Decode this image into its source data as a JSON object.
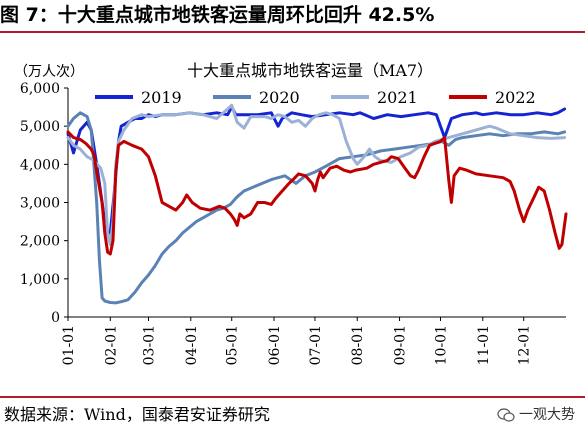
{
  "figure": {
    "title": "图 7：十大重点城市地铁客运量周环比回升 42.5%",
    "source": "数据来源：Wind，国泰君安证券研究",
    "watermark": "一观大势"
  },
  "colors": {
    "rule": "#b01c2e",
    "series": [
      "#1424d2",
      "#5a82b4",
      "#9bb2d6",
      "#c00000"
    ]
  },
  "chart_data": {
    "type": "line",
    "title": "十大重点城市地铁客运量（MA7）",
    "unit_label": "（万人次）",
    "xlabel": "",
    "ylabel": "",
    "ylim": [
      0,
      6000
    ],
    "yticks": [
      0,
      1000,
      2000,
      3000,
      4000,
      5000,
      6000
    ],
    "ytick_labels": [
      "0",
      "1,000",
      "2,000",
      "3,000",
      "4,000",
      "5,000",
      "6,000"
    ],
    "xlim": [
      1,
      366
    ],
    "xticks": [
      1,
      32,
      60,
      91,
      121,
      152,
      182,
      213,
      244,
      274,
      305,
      335
    ],
    "xtick_labels": [
      "01-01",
      "02-01",
      "03-01",
      "04-01",
      "05-01",
      "06-01",
      "07-01",
      "08-01",
      "09-01",
      "10-01",
      "11-01",
      "12-01"
    ],
    "x_unit": "day of year (date axis, MM-DD)",
    "grid": false,
    "legend_position": "top",
    "series": [
      {
        "name": "2019",
        "points": [
          [
            1,
            4800
          ],
          [
            5,
            4300
          ],
          [
            10,
            4900
          ],
          [
            15,
            5100
          ],
          [
            18,
            4900
          ],
          [
            22,
            4000
          ],
          [
            26,
            3000
          ],
          [
            29,
            2200
          ],
          [
            32,
            2200
          ],
          [
            35,
            3300
          ],
          [
            38,
            4600
          ],
          [
            40,
            5000
          ],
          [
            45,
            5100
          ],
          [
            50,
            5200
          ],
          [
            55,
            5200
          ],
          [
            60,
            5300
          ],
          [
            65,
            5250
          ],
          [
            70,
            5300
          ],
          [
            80,
            5300
          ],
          [
            90,
            5350
          ],
          [
            100,
            5300
          ],
          [
            110,
            5350
          ],
          [
            118,
            5300
          ],
          [
            121,
            5500
          ],
          [
            124,
            5300
          ],
          [
            130,
            5300
          ],
          [
            140,
            5300
          ],
          [
            150,
            5350
          ],
          [
            155,
            5000
          ],
          [
            158,
            5200
          ],
          [
            165,
            5350
          ],
          [
            172,
            5300
          ],
          [
            180,
            5250
          ],
          [
            190,
            5300
          ],
          [
            200,
            5350
          ],
          [
            210,
            5300
          ],
          [
            215,
            5350
          ],
          [
            225,
            5200
          ],
          [
            235,
            5300
          ],
          [
            245,
            5250
          ],
          [
            255,
            5300
          ],
          [
            265,
            5350
          ],
          [
            271,
            5300
          ],
          [
            274,
            5000
          ],
          [
            277,
            4700
          ],
          [
            282,
            5200
          ],
          [
            290,
            5300
          ],
          [
            300,
            5350
          ],
          [
            305,
            5300
          ],
          [
            315,
            5350
          ],
          [
            325,
            5300
          ],
          [
            335,
            5300
          ],
          [
            345,
            5350
          ],
          [
            355,
            5300
          ],
          [
            360,
            5350
          ],
          [
            365,
            5450
          ]
        ]
      },
      {
        "name": "2020",
        "points": [
          [
            1,
            5000
          ],
          [
            5,
            5200
          ],
          [
            10,
            5350
          ],
          [
            15,
            5250
          ],
          [
            18,
            4900
          ],
          [
            20,
            4000
          ],
          [
            22,
            3000
          ],
          [
            24,
            1500
          ],
          [
            26,
            500
          ],
          [
            28,
            420
          ],
          [
            32,
            380
          ],
          [
            36,
            370
          ],
          [
            40,
            400
          ],
          [
            45,
            450
          ],
          [
            50,
            650
          ],
          [
            55,
            900
          ],
          [
            60,
            1100
          ],
          [
            65,
            1350
          ],
          [
            70,
            1650
          ],
          [
            75,
            1850
          ],
          [
            80,
            2000
          ],
          [
            85,
            2200
          ],
          [
            90,
            2350
          ],
          [
            95,
            2500
          ],
          [
            100,
            2600
          ],
          [
            105,
            2700
          ],
          [
            110,
            2800
          ],
          [
            115,
            2850
          ],
          [
            120,
            2950
          ],
          [
            125,
            3150
          ],
          [
            130,
            3300
          ],
          [
            140,
            3450
          ],
          [
            150,
            3600
          ],
          [
            160,
            3700
          ],
          [
            168,
            3500
          ],
          [
            175,
            3700
          ],
          [
            182,
            3800
          ],
          [
            190,
            3950
          ],
          [
            200,
            4150
          ],
          [
            210,
            4200
          ],
          [
            220,
            4250
          ],
          [
            230,
            4350
          ],
          [
            240,
            4400
          ],
          [
            250,
            4450
          ],
          [
            260,
            4500
          ],
          [
            270,
            4550
          ],
          [
            275,
            4600
          ],
          [
            280,
            4500
          ],
          [
            285,
            4650
          ],
          [
            290,
            4700
          ],
          [
            300,
            4750
          ],
          [
            310,
            4800
          ],
          [
            320,
            4750
          ],
          [
            330,
            4800
          ],
          [
            340,
            4800
          ],
          [
            350,
            4850
          ],
          [
            360,
            4800
          ],
          [
            365,
            4850
          ]
        ]
      },
      {
        "name": "2021",
        "points": [
          [
            1,
            4700
          ],
          [
            5,
            4500
          ],
          [
            10,
            4400
          ],
          [
            15,
            4200
          ],
          [
            20,
            4100
          ],
          [
            25,
            3900
          ],
          [
            28,
            3500
          ],
          [
            30,
            2200
          ],
          [
            32,
            1900
          ],
          [
            34,
            2500
          ],
          [
            36,
            4000
          ],
          [
            38,
            4600
          ],
          [
            42,
            4900
          ],
          [
            48,
            5200
          ],
          [
            55,
            5300
          ],
          [
            60,
            5250
          ],
          [
            70,
            5300
          ],
          [
            80,
            5300
          ],
          [
            90,
            5350
          ],
          [
            100,
            5300
          ],
          [
            110,
            5200
          ],
          [
            118,
            5450
          ],
          [
            121,
            5550
          ],
          [
            125,
            5100
          ],
          [
            130,
            4950
          ],
          [
            135,
            5250
          ],
          [
            145,
            5250
          ],
          [
            150,
            5200
          ],
          [
            155,
            5300
          ],
          [
            160,
            5250
          ],
          [
            165,
            5100
          ],
          [
            170,
            5150
          ],
          [
            175,
            5000
          ],
          [
            180,
            5200
          ],
          [
            185,
            5300
          ],
          [
            190,
            5350
          ],
          [
            195,
            5300
          ],
          [
            200,
            5200
          ],
          [
            205,
            4600
          ],
          [
            210,
            4150
          ],
          [
            213,
            4000
          ],
          [
            218,
            4200
          ],
          [
            222,
            4400
          ],
          [
            226,
            4200
          ],
          [
            230,
            4100
          ],
          [
            238,
            4050
          ],
          [
            245,
            4200
          ],
          [
            252,
            4300
          ],
          [
            258,
            4450
          ],
          [
            265,
            4500
          ],
          [
            270,
            4600
          ],
          [
            275,
            4650
          ],
          [
            280,
            4700
          ],
          [
            285,
            4750
          ],
          [
            290,
            4800
          ],
          [
            295,
            4850
          ],
          [
            300,
            4900
          ],
          [
            305,
            4950
          ],
          [
            310,
            5000
          ],
          [
            315,
            4950
          ],
          [
            325,
            4800
          ],
          [
            335,
            4750
          ],
          [
            345,
            4700
          ],
          [
            355,
            4680
          ],
          [
            365,
            4700
          ]
        ]
      },
      {
        "name": "2022",
        "points": [
          [
            1,
            4850
          ],
          [
            5,
            4700
          ],
          [
            10,
            4650
          ],
          [
            14,
            4550
          ],
          [
            18,
            4400
          ],
          [
            20,
            4250
          ],
          [
            22,
            3800
          ],
          [
            26,
            3000
          ],
          [
            28,
            2200
          ],
          [
            30,
            1700
          ],
          [
            32,
            1650
          ],
          [
            34,
            2000
          ],
          [
            36,
            3800
          ],
          [
            38,
            4500
          ],
          [
            42,
            4600
          ],
          [
            48,
            4500
          ],
          [
            55,
            4400
          ],
          [
            60,
            4200
          ],
          [
            65,
            3700
          ],
          [
            70,
            3000
          ],
          [
            75,
            2900
          ],
          [
            80,
            2800
          ],
          [
            85,
            3000
          ],
          [
            88,
            3200
          ],
          [
            92,
            3000
          ],
          [
            98,
            2850
          ],
          [
            105,
            2800
          ],
          [
            112,
            2900
          ],
          [
            116,
            2850
          ],
          [
            120,
            2700
          ],
          [
            123,
            2550
          ],
          [
            125,
            2400
          ],
          [
            127,
            2700
          ],
          [
            130,
            2600
          ],
          [
            135,
            2700
          ],
          [
            140,
            3000
          ],
          [
            145,
            3000
          ],
          [
            150,
            2950
          ],
          [
            153,
            3100
          ],
          [
            158,
            3300
          ],
          [
            163,
            3500
          ],
          [
            166,
            3600
          ],
          [
            170,
            3750
          ],
          [
            175,
            3700
          ],
          [
            180,
            3500
          ],
          [
            182,
            3300
          ],
          [
            184,
            3600
          ],
          [
            186,
            3800
          ],
          [
            188,
            3650
          ],
          [
            193,
            3900
          ],
          [
            198,
            3950
          ],
          [
            203,
            3850
          ],
          [
            208,
            3800
          ],
          [
            212,
            3850
          ],
          [
            220,
            3900
          ],
          [
            225,
            4000
          ],
          [
            230,
            4050
          ],
          [
            235,
            4100
          ],
          [
            238,
            4200
          ],
          [
            243,
            4150
          ],
          [
            248,
            3900
          ],
          [
            252,
            3700
          ],
          [
            255,
            3650
          ],
          [
            258,
            3850
          ],
          [
            262,
            4200
          ],
          [
            266,
            4500
          ],
          [
            270,
            4550
          ],
          [
            274,
            4600
          ],
          [
            277,
            4700
          ],
          [
            280,
            3600
          ],
          [
            282,
            3000
          ],
          [
            284,
            3700
          ],
          [
            288,
            3900
          ],
          [
            293,
            3850
          ],
          [
            300,
            3750
          ],
          [
            310,
            3700
          ],
          [
            320,
            3650
          ],
          [
            325,
            3550
          ],
          [
            328,
            3300
          ],
          [
            332,
            2800
          ],
          [
            335,
            2500
          ],
          [
            338,
            2800
          ],
          [
            342,
            3100
          ],
          [
            346,
            3400
          ],
          [
            350,
            3300
          ],
          [
            354,
            2800
          ],
          [
            358,
            2200
          ],
          [
            361,
            1800
          ],
          [
            363,
            1900
          ],
          [
            366,
            2700
          ]
        ]
      }
    ]
  }
}
